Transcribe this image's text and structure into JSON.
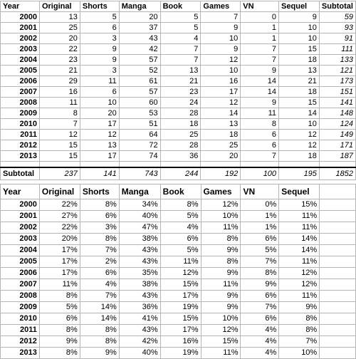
{
  "counts": {
    "columns": [
      "Year",
      "Original",
      "Shorts",
      "Manga",
      "Book",
      "Games",
      "VN",
      "Sequel",
      "Subtotal"
    ],
    "rows": [
      [
        "2000",
        "13",
        "5",
        "20",
        "5",
        "7",
        "0",
        "9",
        "59"
      ],
      [
        "2001",
        "25",
        "6",
        "37",
        "5",
        "9",
        "1",
        "10",
        "93"
      ],
      [
        "2002",
        "20",
        "3",
        "43",
        "4",
        "10",
        "1",
        "10",
        "91"
      ],
      [
        "2003",
        "22",
        "9",
        "42",
        "7",
        "9",
        "7",
        "15",
        "111"
      ],
      [
        "2004",
        "23",
        "9",
        "57",
        "7",
        "12",
        "7",
        "18",
        "133"
      ],
      [
        "2005",
        "21",
        "3",
        "52",
        "13",
        "10",
        "9",
        "13",
        "121"
      ],
      [
        "2006",
        "29",
        "11",
        "61",
        "21",
        "16",
        "14",
        "21",
        "173"
      ],
      [
        "2007",
        "16",
        "6",
        "57",
        "23",
        "17",
        "14",
        "18",
        "151"
      ],
      [
        "2008",
        "11",
        "10",
        "60",
        "24",
        "12",
        "9",
        "15",
        "141"
      ],
      [
        "2009",
        "8",
        "20",
        "53",
        "28",
        "14",
        "11",
        "14",
        "148"
      ],
      [
        "2010",
        "7",
        "17",
        "51",
        "18",
        "13",
        "8",
        "10",
        "124"
      ],
      [
        "2011",
        "12",
        "12",
        "64",
        "25",
        "18",
        "6",
        "12",
        "149"
      ],
      [
        "2012",
        "15",
        "13",
        "72",
        "28",
        "25",
        "6",
        "12",
        "171"
      ],
      [
        "2013",
        "15",
        "17",
        "74",
        "36",
        "20",
        "7",
        "18",
        "187"
      ]
    ],
    "subtotal": [
      "Subtotal",
      "237",
      "141",
      "743",
      "244",
      "192",
      "100",
      "195",
      "1852"
    ]
  },
  "percentages": {
    "columns": [
      "Year",
      "Original",
      "Shorts",
      "Manga",
      "Book",
      "Games",
      "VN",
      "Sequel",
      ""
    ],
    "rows": [
      [
        "2000",
        "22%",
        "8%",
        "34%",
        "8%",
        "12%",
        "0%",
        "15%",
        ""
      ],
      [
        "2001",
        "27%",
        "6%",
        "40%",
        "5%",
        "10%",
        "1%",
        "11%",
        ""
      ],
      [
        "2002",
        "22%",
        "3%",
        "47%",
        "4%",
        "11%",
        "1%",
        "11%",
        ""
      ],
      [
        "2003",
        "20%",
        "8%",
        "38%",
        "6%",
        "8%",
        "6%",
        "14%",
        ""
      ],
      [
        "2004",
        "17%",
        "7%",
        "43%",
        "5%",
        "9%",
        "5%",
        "14%",
        ""
      ],
      [
        "2005",
        "17%",
        "2%",
        "43%",
        "11%",
        "8%",
        "7%",
        "11%",
        ""
      ],
      [
        "2006",
        "17%",
        "6%",
        "35%",
        "12%",
        "9%",
        "8%",
        "12%",
        ""
      ],
      [
        "2007",
        "11%",
        "4%",
        "38%",
        "15%",
        "11%",
        "9%",
        "12%",
        ""
      ],
      [
        "2008",
        "8%",
        "7%",
        "43%",
        "17%",
        "9%",
        "6%",
        "11%",
        ""
      ],
      [
        "2009",
        "5%",
        "14%",
        "36%",
        "19%",
        "9%",
        "7%",
        "9%",
        ""
      ],
      [
        "2010",
        "6%",
        "14%",
        "41%",
        "15%",
        "10%",
        "6%",
        "8%",
        ""
      ],
      [
        "2011",
        "8%",
        "8%",
        "43%",
        "17%",
        "12%",
        "4%",
        "8%",
        ""
      ],
      [
        "2012",
        "9%",
        "8%",
        "42%",
        "16%",
        "15%",
        "4%",
        "7%",
        ""
      ],
      [
        "2013",
        "8%",
        "9%",
        "40%",
        "19%",
        "11%",
        "4%",
        "10%",
        ""
      ]
    ]
  }
}
